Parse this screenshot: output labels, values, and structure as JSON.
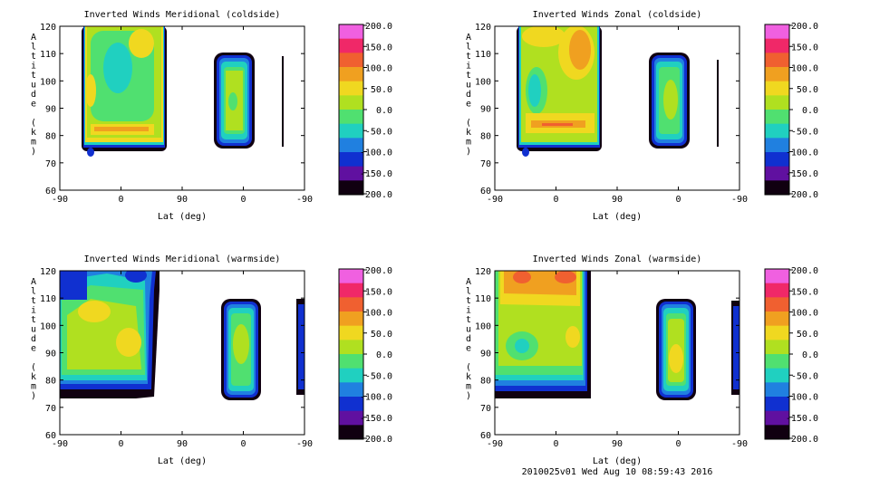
{
  "footer": "2010025v01 Wed Aug 10 08:59:43 2016",
  "colorbar": {
    "labels": [
      "200.0",
      "150.0",
      "100.0",
      "50.0",
      "0.0",
      "-50.0",
      "-100.0",
      "-150.0",
      "-200.0"
    ],
    "colors": [
      "#f060e0",
      "#f02868",
      "#f06030",
      "#f0a020",
      "#f0d820",
      "#b0e020",
      "#50e070",
      "#20d0c0",
      "#2080e0",
      "#1030d0",
      "#6010a0",
      "#100010"
    ]
  },
  "chart_data": [
    {
      "type": "heatmap",
      "title": "Inverted Winds Meridional (coldside)",
      "xlabel": "Lat (deg)",
      "ylabel": "Altitude (km)",
      "xticks": [
        "-90",
        "0",
        "90",
        "0",
        "-90"
      ],
      "yticks": [
        "60",
        "70",
        "80",
        "90",
        "100",
        "110",
        "120"
      ],
      "ylim": [
        60,
        120
      ],
      "clim": [
        -200,
        200
      ]
    },
    {
      "type": "heatmap",
      "title": "Inverted Winds Zonal (coldside)",
      "xlabel": "Lat (deg)",
      "ylabel": "Altitude (km)",
      "xticks": [
        "-90",
        "0",
        "90",
        "0",
        "-90"
      ],
      "yticks": [
        "60",
        "70",
        "80",
        "90",
        "100",
        "110",
        "120"
      ],
      "ylim": [
        60,
        120
      ],
      "clim": [
        -200,
        200
      ]
    },
    {
      "type": "heatmap",
      "title": "Inverted Winds Meridional (warmside)",
      "xlabel": "Lat (deg)",
      "ylabel": "Altitude (km)",
      "xticks": [
        "-90",
        "0",
        "90",
        "0",
        "-90"
      ],
      "yticks": [
        "60",
        "70",
        "80",
        "90",
        "100",
        "110",
        "120"
      ],
      "ylim": [
        60,
        120
      ],
      "clim": [
        -200,
        200
      ]
    },
    {
      "type": "heatmap",
      "title": "Inverted Winds Zonal (warmside)",
      "xlabel": "Lat (deg)",
      "ylabel": "Altitude (km)",
      "xticks": [
        "-90",
        "0",
        "90",
        "0",
        "-90"
      ],
      "yticks": [
        "60",
        "70",
        "80",
        "90",
        "100",
        "110",
        "120"
      ],
      "ylim": [
        60,
        120
      ],
      "clim": [
        -200,
        200
      ]
    }
  ]
}
